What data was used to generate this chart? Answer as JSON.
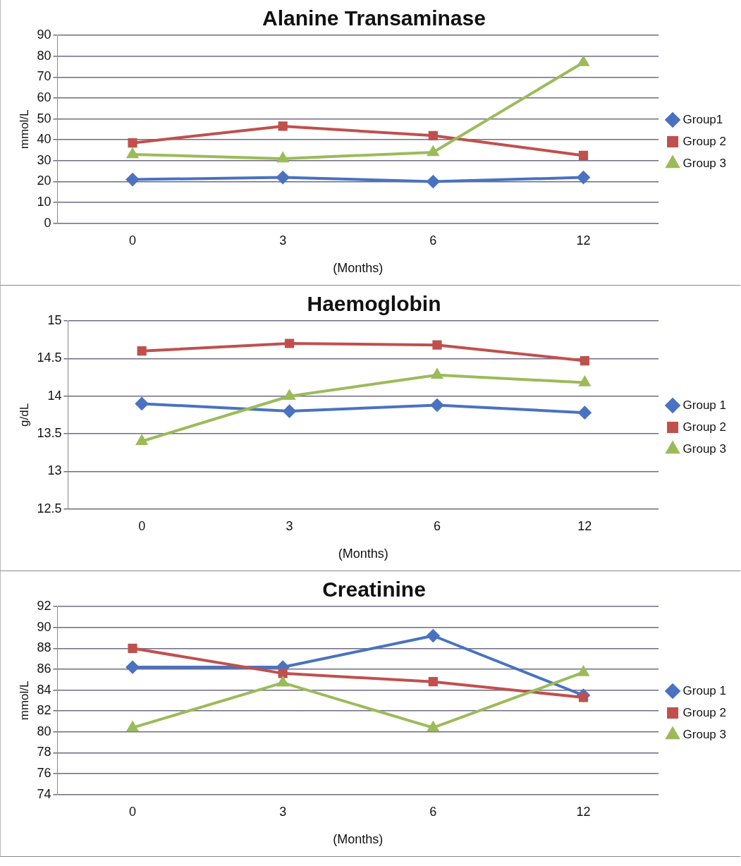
{
  "chart_data": [
    {
      "type": "line",
      "title": "Alanine Transaminase",
      "xlabel": "(Months)",
      "ylabel": "mmol/L",
      "categories": [
        "0",
        "3",
        "6",
        "12"
      ],
      "ylim": [
        0,
        90
      ],
      "yticks": [
        0,
        10,
        20,
        30,
        40,
        50,
        60,
        70,
        80,
        90
      ],
      "grid": "y",
      "legend": "right",
      "series": [
        {
          "name": "Group1",
          "color": "#4a72c0",
          "marker": "diamond",
          "values": [
            21,
            22,
            20,
            22
          ]
        },
        {
          "name": "Group 2",
          "color": "#c0504d",
          "marker": "square",
          "values": [
            38.5,
            46.5,
            42,
            32.5
          ]
        },
        {
          "name": "Group 3",
          "color": "#9bbb59",
          "marker": "triangle",
          "values": [
            33,
            31,
            34,
            77
          ]
        }
      ]
    },
    {
      "type": "line",
      "title": "Haemoglobin",
      "xlabel": "(Months)",
      "ylabel": "g/dL",
      "categories": [
        "0",
        "3",
        "6",
        "12"
      ],
      "ylim": [
        12.5,
        15
      ],
      "yticks": [
        12.5,
        13,
        13.5,
        14,
        14.5,
        15
      ],
      "grid": "y",
      "legend": "right",
      "series": [
        {
          "name": "Group 1",
          "color": "#4a72c0",
          "marker": "diamond",
          "values": [
            13.9,
            13.8,
            13.88,
            13.78
          ]
        },
        {
          "name": "Group 2",
          "color": "#c0504d",
          "marker": "square",
          "values": [
            14.6,
            14.7,
            14.68,
            14.47
          ]
        },
        {
          "name": "Group 3",
          "color": "#9bbb59",
          "marker": "triangle",
          "values": [
            13.4,
            14.0,
            14.28,
            14.18
          ]
        }
      ]
    },
    {
      "type": "line",
      "title": "Creatinine",
      "xlabel": "(Months)",
      "ylabel": "mmol/L",
      "categories": [
        "0",
        "3",
        "6",
        "12"
      ],
      "ylim": [
        74,
        92
      ],
      "yticks": [
        74,
        76,
        78,
        80,
        82,
        84,
        86,
        88,
        90,
        92
      ],
      "grid": "y",
      "legend": "right",
      "series": [
        {
          "name": "Group 1",
          "color": "#4a72c0",
          "marker": "diamond",
          "values": [
            86.2,
            86.2,
            89.2,
            83.5
          ]
        },
        {
          "name": "Group 2",
          "color": "#c0504d",
          "marker": "square",
          "values": [
            88,
            85.6,
            84.8,
            83.3
          ]
        },
        {
          "name": "Group 3",
          "color": "#9bbb59",
          "marker": "triangle",
          "values": [
            80.4,
            84.7,
            80.4,
            85.7
          ]
        }
      ]
    }
  ]
}
